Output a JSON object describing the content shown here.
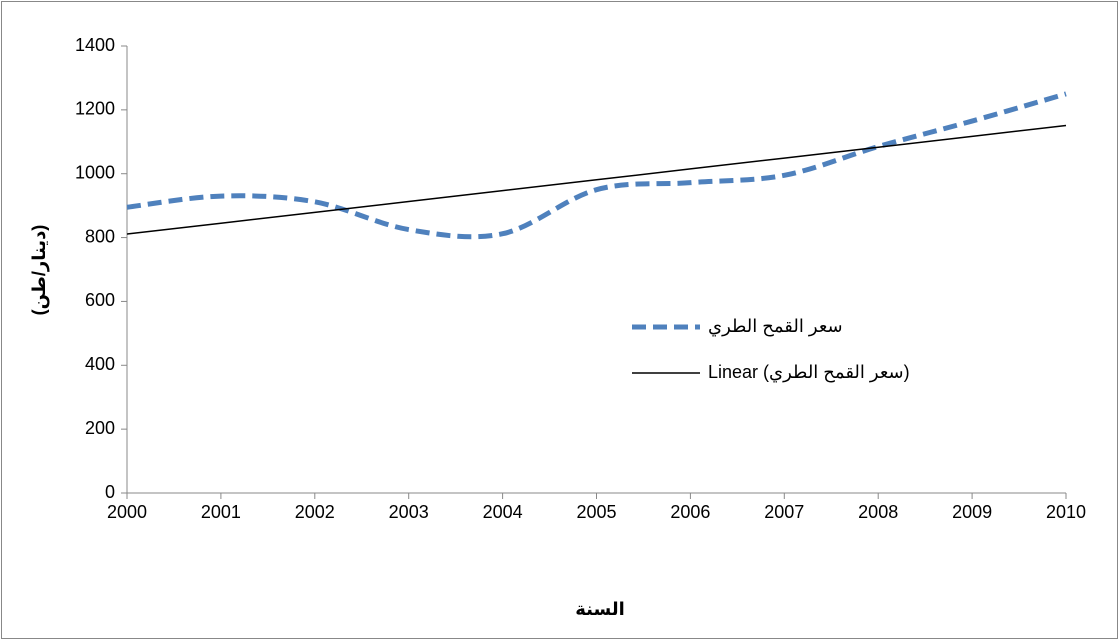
{
  "chart_data": {
    "type": "line",
    "categories": [
      "2000",
      "2001",
      "2002",
      "2003",
      "2004",
      "2005",
      "2006",
      "2007",
      "2008",
      "2009",
      "2010"
    ],
    "series": [
      {
        "name": "سعر القمح الطري",
        "color": "#4f81bd",
        "dashed": true,
        "values": [
          895,
          930,
          912,
          825,
          812,
          950,
          972,
          995,
          1085,
          1165,
          1250
        ]
      },
      {
        "name": "Linear (سعر القمح الطري)",
        "color": "#000000",
        "dashed": false,
        "values": [
          811,
          845,
          879,
          913,
          947,
          981,
          1015,
          1049,
          1083,
          1117,
          1151
        ]
      }
    ],
    "ylabel": "(دينار/طن)",
    "xlabel": "السنة",
    "ylim": [
      0,
      1400
    ],
    "yticks": [
      0,
      200,
      400,
      600,
      800,
      1000,
      1200,
      1400
    ],
    "smooth": true,
    "legend": "right"
  }
}
